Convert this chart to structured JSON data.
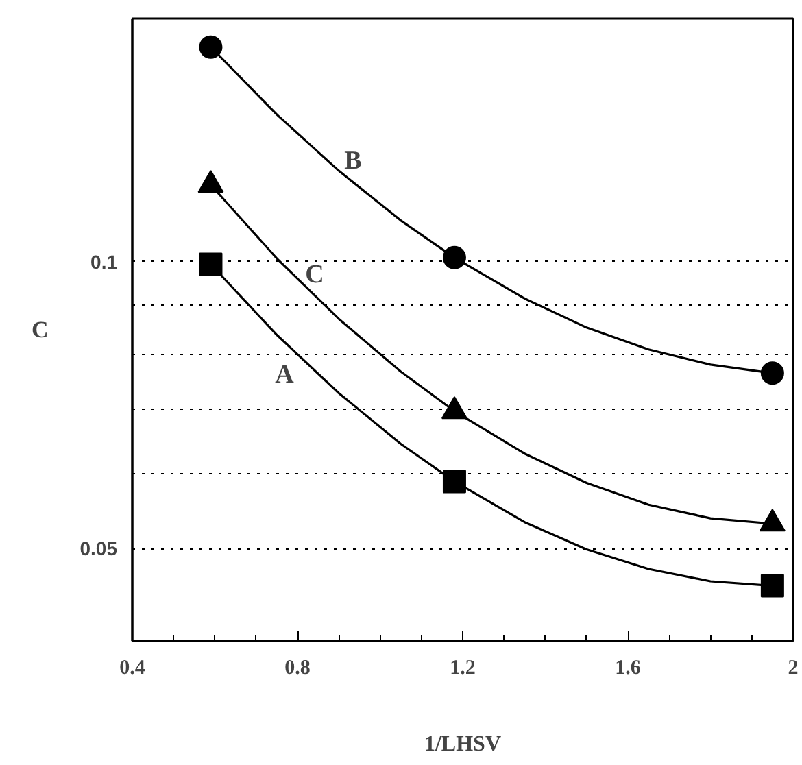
{
  "chart_data": {
    "type": "scatter",
    "xlabel": "1/LHSV",
    "ylabel": "C",
    "log": "y",
    "grid": "y",
    "line_style": "solid",
    "xlim": [
      0.4,
      2.0
    ],
    "xticks": [
      0.4,
      0.8,
      1.2,
      1.6,
      {
        "value": 2.0,
        "label": "2"
      }
    ],
    "ylim": [
      0.04,
      0.18
    ],
    "yticks": [
      0.05,
      {
        "value": 0.06,
        "label": null
      },
      {
        "value": 0.07,
        "label": null
      },
      {
        "value": 0.08,
        "label": null
      },
      {
        "value": 0.09,
        "label": null
      },
      0.1
    ],
    "x": [
      0.59,
      1.18,
      1.95
    ],
    "series": [
      {
        "color": "#000000",
        "marker": "square",
        "values": [
          0.0994,
          0.0588,
          0.0457
        ]
      },
      {
        "color": "#000000",
        "marker": "circle",
        "values": [
          0.168,
          0.101,
          0.0764
        ]
      },
      {
        "color": "#000000",
        "marker": "triangle",
        "values": [
          0.1204,
          0.0697,
          0.0531
        ]
      },
      {
        "type": "line",
        "color": "#000000",
        "x": [
          0.59,
          0.75,
          0.9,
          1.05,
          1.18,
          1.35,
          1.5,
          1.65,
          1.8,
          1.95
        ],
        "values": [
          0.0994,
          0.0838,
          0.0728,
          0.0644,
          0.0588,
          0.0533,
          0.0499,
          0.0476,
          0.0462,
          0.0457
        ]
      },
      {
        "type": "line",
        "color": "#000000",
        "x": [
          0.59,
          0.75,
          0.9,
          1.05,
          1.18,
          1.35,
          1.5,
          1.65,
          1.8,
          1.95
        ],
        "values": [
          0.168,
          0.1427,
          0.1246,
          0.1105,
          0.101,
          0.0915,
          0.0853,
          0.0809,
          0.078,
          0.0764
        ]
      },
      {
        "type": "line",
        "color": "#000000",
        "x": [
          0.59,
          0.75,
          0.9,
          1.05,
          1.18,
          1.35,
          1.5,
          1.65,
          1.8,
          1.95
        ],
        "values": [
          0.1204,
          0.1008,
          0.0871,
          0.0767,
          0.0697,
          0.0629,
          0.0586,
          0.0556,
          0.0538,
          0.0531
        ]
      }
    ],
    "annotations": [
      "A",
      "B",
      "C"
    ]
  }
}
